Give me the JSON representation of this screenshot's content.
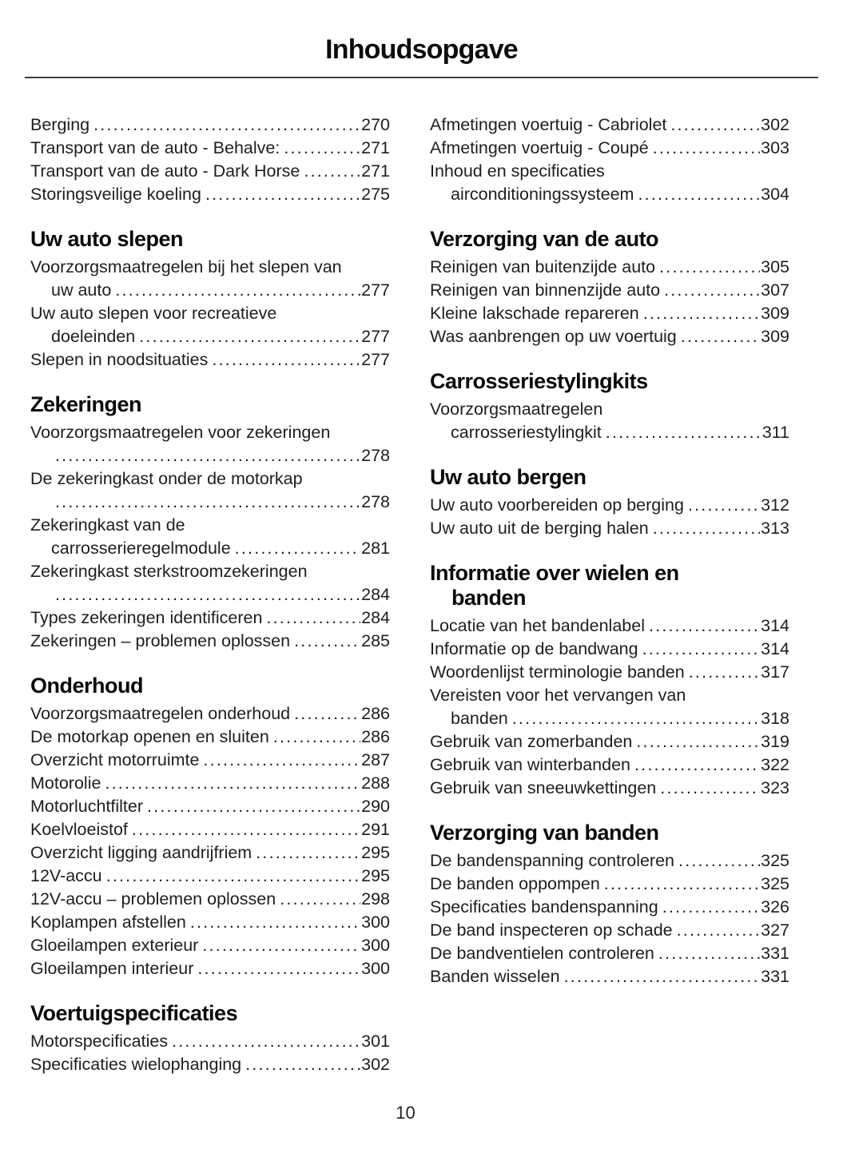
{
  "doc": {
    "title": "Inhoudsopgave",
    "page_number": "10"
  },
  "columns": [
    {
      "sections": [
        {
          "heading_lines": null,
          "entries": [
            {
              "text": "Berging",
              "cont": null,
              "page": "270"
            },
            {
              "text": "Transport van de auto - Behalve:",
              "cont": null,
              "page": "271"
            },
            {
              "text": "Transport van de auto - Dark Horse",
              "cont": null,
              "page": "271"
            },
            {
              "text": "Storingsveilige koeling",
              "cont": null,
              "page": "275"
            }
          ]
        },
        {
          "heading_lines": [
            "Uw auto slepen"
          ],
          "entries": [
            {
              "text": "Voorzorgsmaatregelen bij het slepen van",
              "cont": "uw auto",
              "page": "277"
            },
            {
              "text": "Uw auto slepen voor recreatieve",
              "cont": "doeleinden",
              "page": "277"
            },
            {
              "text": "Slepen in noodsituaties",
              "cont": null,
              "page": "277"
            }
          ]
        },
        {
          "heading_lines": [
            "Zekeringen"
          ],
          "entries": [
            {
              "text": "Voorzorgsmaatregelen voor zekeringen",
              "cont": "",
              "page": "278"
            },
            {
              "text": "De zekeringkast onder de motorkap",
              "cont": "",
              "page": "278"
            },
            {
              "text": "Zekeringkast van de",
              "cont": "carrosserieregelmodule",
              "page": "281"
            },
            {
              "text": "Zekeringkast sterkstroomzekeringen",
              "cont": "",
              "page": "284"
            },
            {
              "text": "Types zekeringen identificeren",
              "cont": null,
              "page": "284"
            },
            {
              "text": "Zekeringen – problemen oplossen",
              "cont": null,
              "page": "285"
            }
          ]
        },
        {
          "heading_lines": [
            "Onderhoud"
          ],
          "entries": [
            {
              "text": "Voorzorgsmaatregelen onderhoud",
              "cont": null,
              "page": "286"
            },
            {
              "text": "De motorkap openen en sluiten",
              "cont": null,
              "page": "286"
            },
            {
              "text": "Overzicht motorruimte",
              "cont": null,
              "page": "287"
            },
            {
              "text": "Motorolie",
              "cont": null,
              "page": "288"
            },
            {
              "text": "Motorluchtfilter",
              "cont": null,
              "page": "290"
            },
            {
              "text": "Koelvloeistof",
              "cont": null,
              "page": "291"
            },
            {
              "text": "Overzicht ligging aandrijfriem",
              "cont": null,
              "page": "295"
            },
            {
              "text": "12V-accu",
              "cont": null,
              "page": "295"
            },
            {
              "text": "12V-accu – problemen oplossen",
              "cont": null,
              "page": "298"
            },
            {
              "text": "Koplampen afstellen",
              "cont": null,
              "page": "300"
            },
            {
              "text": "Gloeilampen exterieur",
              "cont": null,
              "page": "300"
            },
            {
              "text": "Gloeilampen interieur",
              "cont": null,
              "page": "300"
            }
          ]
        },
        {
          "heading_lines": [
            "Voertuigspecificaties"
          ],
          "entries": [
            {
              "text": "Motorspecificaties",
              "cont": null,
              "page": "301"
            },
            {
              "text": "Specificaties wielophanging",
              "cont": null,
              "page": "302"
            }
          ]
        }
      ]
    },
    {
      "sections": [
        {
          "heading_lines": null,
          "entries": [
            {
              "text": "Afmetingen voertuig - Cabriolet",
              "cont": null,
              "page": "302"
            },
            {
              "text": "Afmetingen voertuig - Coupé",
              "cont": null,
              "page": "303"
            },
            {
              "text": "Inhoud en specificaties",
              "cont": "airconditioningssysteem",
              "page": "304"
            }
          ]
        },
        {
          "heading_lines": [
            "Verzorging van de auto"
          ],
          "entries": [
            {
              "text": "Reinigen van buitenzijde auto",
              "cont": null,
              "page": "305"
            },
            {
              "text": "Reinigen van binnenzijde auto",
              "cont": null,
              "page": "307"
            },
            {
              "text": "Kleine lakschade repareren",
              "cont": null,
              "page": "309"
            },
            {
              "text": "Was aanbrengen op uw voertuig",
              "cont": null,
              "page": "309"
            }
          ]
        },
        {
          "heading_lines": [
            "Carrosseriestylingkits"
          ],
          "entries": [
            {
              "text": "Voorzorgsmaatregelen",
              "cont": "carrosseriestylingkit",
              "page": "311"
            }
          ]
        },
        {
          "heading_lines": [
            "Uw auto bergen"
          ],
          "entries": [
            {
              "text": "Uw auto voorbereiden op berging",
              "cont": null,
              "page": "312"
            },
            {
              "text": "Uw auto uit de berging halen",
              "cont": null,
              "page": "313"
            }
          ]
        },
        {
          "heading_lines": [
            "Informatie over wielen en",
            "banden"
          ],
          "entries": [
            {
              "text": "Locatie van het bandenlabel",
              "cont": null,
              "page": "314"
            },
            {
              "text": "Informatie op de bandwang",
              "cont": null,
              "page": "314"
            },
            {
              "text": "Woordenlijst terminologie banden",
              "cont": null,
              "page": "317"
            },
            {
              "text": "Vereisten voor het vervangen van",
              "cont": "banden",
              "page": "318"
            },
            {
              "text": "Gebruik van zomerbanden",
              "cont": null,
              "page": "319"
            },
            {
              "text": "Gebruik van winterbanden",
              "cont": null,
              "page": "322"
            },
            {
              "text": "Gebruik van sneeuwkettingen",
              "cont": null,
              "page": "323"
            }
          ]
        },
        {
          "heading_lines": [
            "Verzorging van banden"
          ],
          "entries": [
            {
              "text": "De bandenspanning controleren",
              "cont": null,
              "page": "325"
            },
            {
              "text": "De banden oppompen",
              "cont": null,
              "page": "325"
            },
            {
              "text": "Specificaties bandenspanning",
              "cont": null,
              "page": "326"
            },
            {
              "text": "De band inspecteren op schade",
              "cont": null,
              "page": "327"
            },
            {
              "text": "De bandventielen controleren",
              "cont": null,
              "page": "331"
            },
            {
              "text": "Banden wisselen",
              "cont": null,
              "page": "331"
            }
          ]
        }
      ]
    }
  ]
}
